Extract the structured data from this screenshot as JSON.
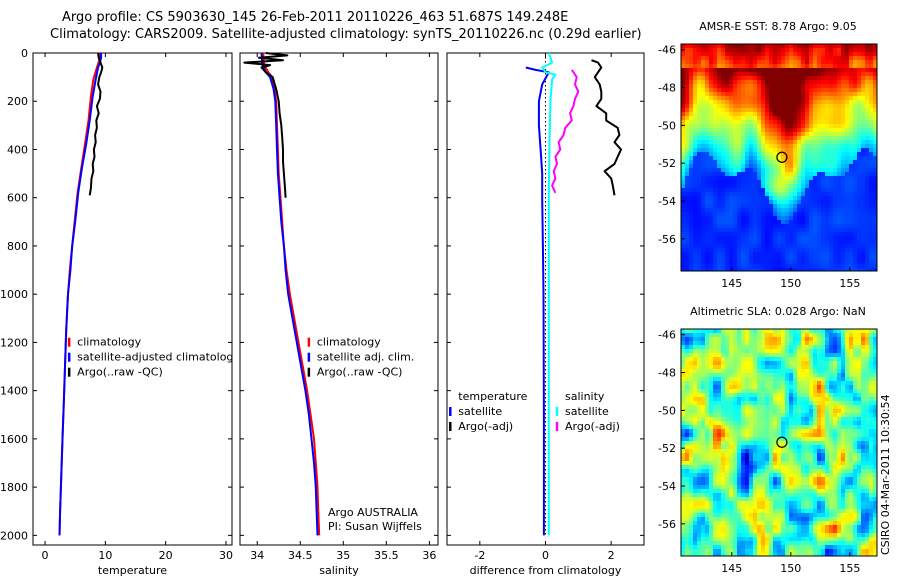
{
  "header": {
    "line1": "Argo profile: CS 5903630_145 26-Feb-2011 20110226_463 51.687S 149.248E",
    "line2": "Climatology: CARS2009. Satellite-adjusted climatology: synTS_20110226.nc (0.29d earlier)"
  },
  "side_stamp": "CSIRO 04-Mar-2011 10:30:54",
  "colors": {
    "red": "#ff0000",
    "blue": "#0000ff",
    "black": "#000000",
    "cyan": "#00ffff",
    "magenta": "#ff00ff"
  },
  "chart_data": [
    {
      "id": "temperature",
      "type": "line",
      "xlabel": "temperature",
      "ylabel": "",
      "xlim": [
        -2,
        31
      ],
      "ylim": [
        2040,
        0
      ],
      "xticks": [
        0,
        10,
        20,
        30
      ],
      "yticks": [
        0,
        200,
        400,
        600,
        800,
        1000,
        1200,
        1400,
        1600,
        1800,
        2000
      ],
      "legend": [
        {
          "label": "climatology",
          "color": "#ff0000"
        },
        {
          "label": "satellite-adjusted climatology",
          "color": "#0000ff"
        },
        {
          "label": "Argo(..raw -QC)",
          "color": "#000000"
        }
      ],
      "series": [
        {
          "color": "#ff0000",
          "points": [
            [
              9.0,
              0
            ],
            [
              9.0,
              30
            ],
            [
              8.6,
              60
            ],
            [
              8.0,
              110
            ],
            [
              7.6,
              180
            ],
            [
              7.2,
              280
            ],
            [
              6.6,
              380
            ],
            [
              6.0,
              480
            ],
            [
              5.4,
              580
            ],
            [
              4.9,
              700
            ],
            [
              4.5,
              800
            ],
            [
              4.1,
              900
            ],
            [
              3.8,
              1000
            ],
            [
              3.5,
              1150
            ],
            [
              3.3,
              1300
            ],
            [
              3.1,
              1450
            ],
            [
              2.9,
              1600
            ],
            [
              2.7,
              1750
            ],
            [
              2.5,
              1900
            ],
            [
              2.4,
              2000
            ]
          ]
        },
        {
          "color": "#0000ff",
          "points": [
            [
              9.3,
              0
            ],
            [
              9.3,
              20
            ],
            [
              9.1,
              40
            ],
            [
              8.8,
              60
            ],
            [
              8.4,
              110
            ],
            [
              7.9,
              180
            ],
            [
              7.4,
              280
            ],
            [
              6.8,
              380
            ],
            [
              6.1,
              480
            ],
            [
              5.5,
              580
            ],
            [
              5.0,
              700
            ],
            [
              4.5,
              800
            ],
            [
              4.2,
              900
            ],
            [
              3.8,
              1000
            ],
            [
              3.5,
              1150
            ],
            [
              3.3,
              1300
            ],
            [
              3.1,
              1450
            ],
            [
              2.9,
              1600
            ],
            [
              2.7,
              1750
            ],
            [
              2.5,
              1900
            ],
            [
              2.4,
              2000
            ]
          ]
        },
        {
          "color": "#000000",
          "points": [
            [
              8.8,
              0
            ],
            [
              8.9,
              20
            ],
            [
              9.2,
              40
            ],
            [
              9.5,
              60
            ],
            [
              9.3,
              80
            ],
            [
              9.0,
              100
            ],
            [
              8.8,
              130
            ],
            [
              9.2,
              160
            ],
            [
              9.1,
              190
            ],
            [
              8.6,
              220
            ],
            [
              8.9,
              250
            ],
            [
              8.5,
              280
            ],
            [
              8.6,
              310
            ],
            [
              8.3,
              340
            ],
            [
              8.4,
              370
            ],
            [
              8.1,
              400
            ],
            [
              8.2,
              430
            ],
            [
              7.9,
              460
            ],
            [
              8.0,
              490
            ],
            [
              7.7,
              520
            ],
            [
              7.6,
              560
            ],
            [
              7.4,
              590
            ]
          ]
        }
      ]
    },
    {
      "id": "salinity",
      "type": "line",
      "xlabel": "salinity",
      "ylabel": "",
      "xlim": [
        33.8,
        36.1
      ],
      "ylim": [
        2040,
        0
      ],
      "xticks": [
        34,
        34.5,
        35,
        35.5,
        36
      ],
      "yticks": [
        0,
        200,
        400,
        600,
        800,
        1000,
        1200,
        1400,
        1600,
        1800,
        2000
      ],
      "legend": [
        {
          "label": "climatology",
          "color": "#ff0000"
        },
        {
          "label": "satellite adj. clim.",
          "color": "#0000ff"
        },
        {
          "label": "Argo(..raw -QC)",
          "color": "#000000"
        }
      ],
      "annotation": [
        "Argo AUSTRALIA",
        "PI: Susan Wijffels"
      ],
      "series": [
        {
          "color": "#ff0000",
          "points": [
            [
              34.07,
              0
            ],
            [
              34.08,
              50
            ],
            [
              34.13,
              80
            ],
            [
              34.17,
              100
            ],
            [
              34.2,
              150
            ],
            [
              34.22,
              200
            ],
            [
              34.23,
              300
            ],
            [
              34.24,
              400
            ],
            [
              34.25,
              500
            ],
            [
              34.27,
              600
            ],
            [
              34.29,
              700
            ],
            [
              34.31,
              800
            ],
            [
              34.34,
              900
            ],
            [
              34.38,
              1000
            ],
            [
              34.43,
              1100
            ],
            [
              34.48,
              1200
            ],
            [
              34.53,
              1300
            ],
            [
              34.58,
              1400
            ],
            [
              34.62,
              1500
            ],
            [
              34.66,
              1600
            ],
            [
              34.68,
              1700
            ],
            [
              34.7,
              1800
            ],
            [
              34.71,
              1900
            ],
            [
              34.72,
              2000
            ]
          ]
        },
        {
          "color": "#0000ff",
          "points": [
            [
              34.05,
              0
            ],
            [
              34.06,
              50
            ],
            [
              34.1,
              80
            ],
            [
              34.15,
              100
            ],
            [
              34.19,
              150
            ],
            [
              34.21,
              200
            ],
            [
              34.22,
              300
            ],
            [
              34.23,
              400
            ],
            [
              34.24,
              500
            ],
            [
              34.26,
              600
            ],
            [
              34.28,
              700
            ],
            [
              34.31,
              800
            ],
            [
              34.33,
              900
            ],
            [
              34.36,
              1000
            ],
            [
              34.41,
              1100
            ],
            [
              34.46,
              1200
            ],
            [
              34.51,
              1300
            ],
            [
              34.56,
              1400
            ],
            [
              34.6,
              1500
            ],
            [
              34.63,
              1600
            ],
            [
              34.66,
              1700
            ],
            [
              34.68,
              1800
            ],
            [
              34.69,
              1900
            ],
            [
              34.7,
              2000
            ]
          ]
        },
        {
          "color": "#000000",
          "points": [
            [
              34.1,
              0
            ],
            [
              34.35,
              10
            ],
            [
              34.02,
              20
            ],
            [
              34.3,
              30
            ],
            [
              33.85,
              40
            ],
            [
              34.15,
              50
            ],
            [
              34.05,
              60
            ],
            [
              34.1,
              80
            ],
            [
              34.18,
              100
            ],
            [
              34.22,
              150
            ],
            [
              34.25,
              200
            ],
            [
              34.26,
              250
            ],
            [
              34.28,
              300
            ],
            [
              34.29,
              350
            ],
            [
              34.3,
              400
            ],
            [
              34.3,
              450
            ],
            [
              34.31,
              500
            ],
            [
              34.32,
              550
            ],
            [
              34.33,
              600
            ]
          ]
        }
      ]
    },
    {
      "id": "difference",
      "type": "line",
      "xlabel": "difference from climatology",
      "ylabel": "",
      "xlim": [
        -3,
        3
      ],
      "ylim": [
        2040,
        0
      ],
      "xticks": [
        -2,
        0,
        2
      ],
      "yticks": [
        0,
        200,
        400,
        600,
        800,
        1000,
        1200,
        1400,
        1600,
        1800,
        2000
      ],
      "legend": [
        {
          "label": "temperature",
          "color": ""
        },
        {
          "label": "satellite",
          "color": "#0000ff"
        },
        {
          "label": "Argo(-adj)",
          "color": "#000000"
        },
        {
          "label": "salinity",
          "color": ""
        },
        {
          "label": "satellite",
          "color": "#00ffff"
        },
        {
          "label": "Argo(-adj)",
          "color": "#ff00ff"
        }
      ],
      "series": [
        {
          "color": "#000000",
          "dashed": true,
          "points": [
            [
              0,
              0
            ],
            [
              0,
              2000
            ]
          ]
        },
        {
          "color": "#0000ff",
          "points": [
            [
              -0.6,
              60
            ],
            [
              -0.3,
              70
            ],
            [
              0.1,
              80
            ],
            [
              -0.1,
              130
            ],
            [
              -0.2,
              200
            ],
            [
              -0.2,
              300
            ],
            [
              -0.15,
              400
            ],
            [
              -0.1,
              500
            ],
            [
              -0.1,
              600
            ],
            [
              -0.08,
              800
            ],
            [
              -0.06,
              1000
            ],
            [
              -0.05,
              1500
            ],
            [
              -0.05,
              2000
            ]
          ]
        },
        {
          "color": "#00ffff",
          "points": [
            [
              0.1,
              0
            ],
            [
              0.2,
              40
            ],
            [
              -0.1,
              60
            ],
            [
              0.0,
              80
            ],
            [
              0.3,
              90
            ],
            [
              0.2,
              110
            ],
            [
              0.15,
              200
            ],
            [
              0.12,
              400
            ],
            [
              0.1,
              600
            ],
            [
              0.1,
              800
            ],
            [
              0.1,
              1000
            ],
            [
              0.1,
              1500
            ],
            [
              0.1,
              2000
            ]
          ]
        },
        {
          "color": "#000000",
          "points": [
            [
              1.4,
              30
            ],
            [
              1.6,
              40
            ],
            [
              1.7,
              60
            ],
            [
              1.6,
              80
            ],
            [
              1.5,
              100
            ],
            [
              1.65,
              130
            ],
            [
              1.7,
              160
            ],
            [
              1.7,
              190
            ],
            [
              1.55,
              220
            ],
            [
              1.85,
              250
            ],
            [
              1.85,
              280
            ],
            [
              2.2,
              310
            ],
            [
              2.25,
              340
            ],
            [
              2.1,
              370
            ],
            [
              2.3,
              400
            ],
            [
              2.2,
              430
            ],
            [
              2.1,
              460
            ],
            [
              1.8,
              490
            ],
            [
              2.0,
              520
            ],
            [
              2.05,
              550
            ],
            [
              2.1,
              590
            ]
          ]
        },
        {
          "color": "#ff00ff",
          "points": [
            [
              0.8,
              70
            ],
            [
              0.95,
              100
            ],
            [
              0.9,
              130
            ],
            [
              1.0,
              160
            ],
            [
              0.9,
              190
            ],
            [
              0.85,
              220
            ],
            [
              0.75,
              250
            ],
            [
              0.8,
              280
            ],
            [
              0.6,
              310
            ],
            [
              0.55,
              340
            ],
            [
              0.4,
              370
            ],
            [
              0.45,
              400
            ],
            [
              0.3,
              430
            ],
            [
              0.35,
              460
            ],
            [
              0.25,
              490
            ],
            [
              0.3,
              520
            ],
            [
              0.2,
              550
            ],
            [
              0.3,
              580
            ]
          ]
        }
      ]
    },
    {
      "id": "sst_map",
      "type": "heatmap",
      "title": "AMSR-E SST: 8.78 Argo: 9.05",
      "xticks": [
        145,
        150,
        155
      ],
      "yticks": [
        -46,
        -48,
        -50,
        -52,
        -54,
        -56
      ],
      "xlim": [
        140.7,
        157.3
      ],
      "ylim": [
        -57.7,
        -45.7
      ],
      "marker": [
        149.248,
        -51.687
      ]
    },
    {
      "id": "sla_map",
      "type": "heatmap",
      "title": "Altimetric SLA: 0.028 Argo: NaN",
      "xticks": [
        145,
        150,
        155
      ],
      "yticks": [
        -46,
        -48,
        -50,
        -52,
        -54,
        -56
      ],
      "xlim": [
        140.7,
        157.3
      ],
      "ylim": [
        -57.7,
        -45.7
      ],
      "marker": [
        149.248,
        -51.687
      ]
    }
  ]
}
